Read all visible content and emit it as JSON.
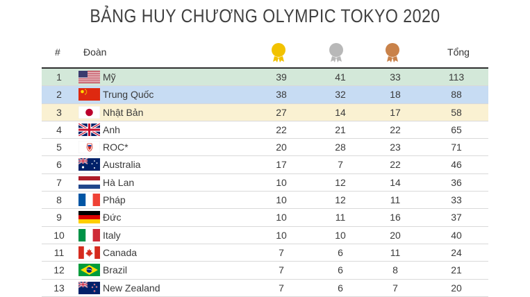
{
  "title": "BẢNG HUY CHƯƠNG OLYMPIC TOKYO 2020",
  "columns": {
    "rank": "#",
    "team": "Đoàn",
    "total": "Tổng"
  },
  "medal_icons": [
    "gold-medal-icon",
    "silver-medal-icon",
    "bronze-medal-icon"
  ],
  "colors": {
    "gold": "#f2c200",
    "silver": "#b8b8b8",
    "bronze": "#c9824a",
    "row1": "#d3e8d9",
    "row2": "#c7dcf3",
    "row3": "#faf1d2"
  },
  "chart_data": {
    "type": "table",
    "rows": [
      {
        "rank": "1",
        "team": "Mỹ",
        "flag": "usa",
        "gold": "39",
        "silver": "41",
        "bronze": "33",
        "total": "113"
      },
      {
        "rank": "2",
        "team": "Trung Quốc",
        "flag": "china",
        "gold": "38",
        "silver": "32",
        "bronze": "18",
        "total": "88"
      },
      {
        "rank": "3",
        "team": "Nhật Bản",
        "flag": "japan",
        "gold": "27",
        "silver": "14",
        "bronze": "17",
        "total": "58"
      },
      {
        "rank": "4",
        "team": "Anh",
        "flag": "uk",
        "gold": "22",
        "silver": "21",
        "bronze": "22",
        "total": "65"
      },
      {
        "rank": "5",
        "team": "ROC*",
        "flag": "roc",
        "gold": "20",
        "silver": "28",
        "bronze": "23",
        "total": "71"
      },
      {
        "rank": "6",
        "team": "Australia",
        "flag": "australia",
        "gold": "17",
        "silver": "7",
        "bronze": "22",
        "total": "46"
      },
      {
        "rank": "7",
        "team": "Hà Lan",
        "flag": "netherlands",
        "gold": "10",
        "silver": "12",
        "bronze": "14",
        "total": "36"
      },
      {
        "rank": "8",
        "team": "Pháp",
        "flag": "france",
        "gold": "10",
        "silver": "12",
        "bronze": "11",
        "total": "33"
      },
      {
        "rank": "9",
        "team": "Đức",
        "flag": "germany",
        "gold": "10",
        "silver": "11",
        "bronze": "16",
        "total": "37"
      },
      {
        "rank": "10",
        "team": "Italy",
        "flag": "italy",
        "gold": "10",
        "silver": "10",
        "bronze": "20",
        "total": "40"
      },
      {
        "rank": "11",
        "team": "Canada",
        "flag": "canada",
        "gold": "7",
        "silver": "6",
        "bronze": "11",
        "total": "24"
      },
      {
        "rank": "12",
        "team": "Brazil",
        "flag": "brazil",
        "gold": "7",
        "silver": "6",
        "bronze": "8",
        "total": "21"
      },
      {
        "rank": "13",
        "team": "New Zealand",
        "flag": "new-zealand",
        "gold": "7",
        "silver": "6",
        "bronze": "7",
        "total": "20"
      }
    ]
  }
}
